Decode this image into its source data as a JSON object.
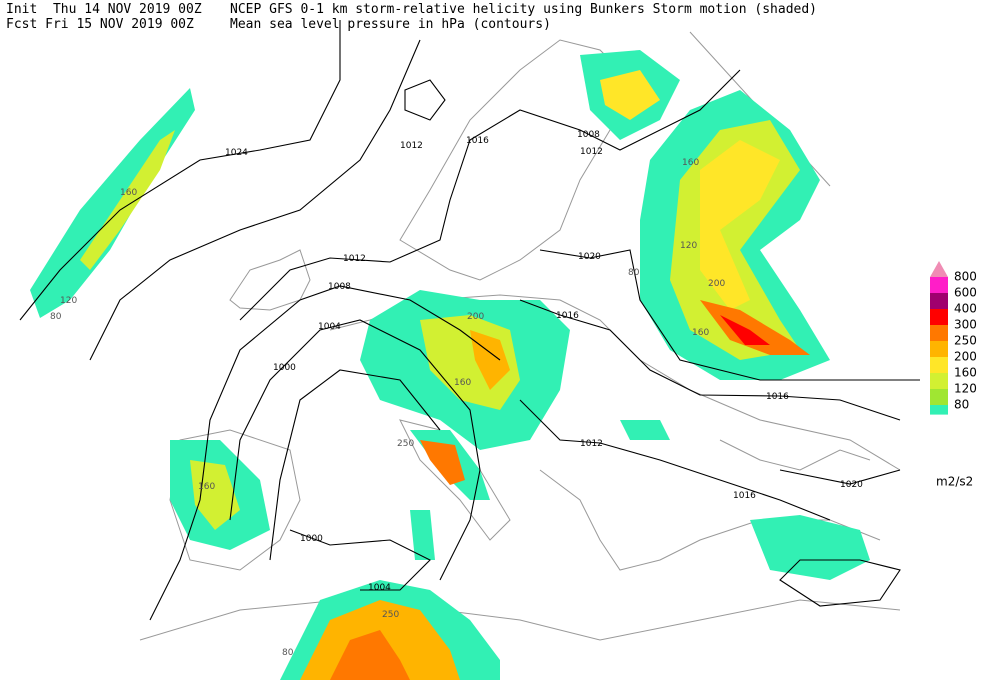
{
  "header": {
    "init": "Init  Thu 14 NOV 2019 00Z",
    "fcst": "Fcst Fri 15 NOV 2019 00Z",
    "title": "NCEP GFS 0-1 km storm-relative helicity using Bunkers Storm motion (shaded)",
    "subtitle": "Mean sea level pressure in hPa (contours)"
  },
  "legend": {
    "levels": [
      800,
      600,
      400,
      300,
      250,
      200,
      160,
      120,
      80
    ],
    "colors": [
      "#f08cb4",
      "#ff1ec8",
      "#a0006e",
      "#ff0000",
      "#ff7800",
      "#ffb400",
      "#ffe628",
      "#d2f032",
      "#a0e632",
      "#32f0b4"
    ],
    "unit": "m2/s2"
  },
  "contour_labels": [
    1024,
    1012,
    1016,
    1008,
    1012,
    1012,
    1008,
    1004,
    1000,
    1000,
    1004,
    1016,
    1020,
    1016,
    1012,
    1016,
    1020
  ],
  "shading_labels": [
    120,
    80,
    160,
    200,
    160,
    250,
    160,
    250,
    200,
    160,
    120,
    160,
    80,
    80
  ]
}
